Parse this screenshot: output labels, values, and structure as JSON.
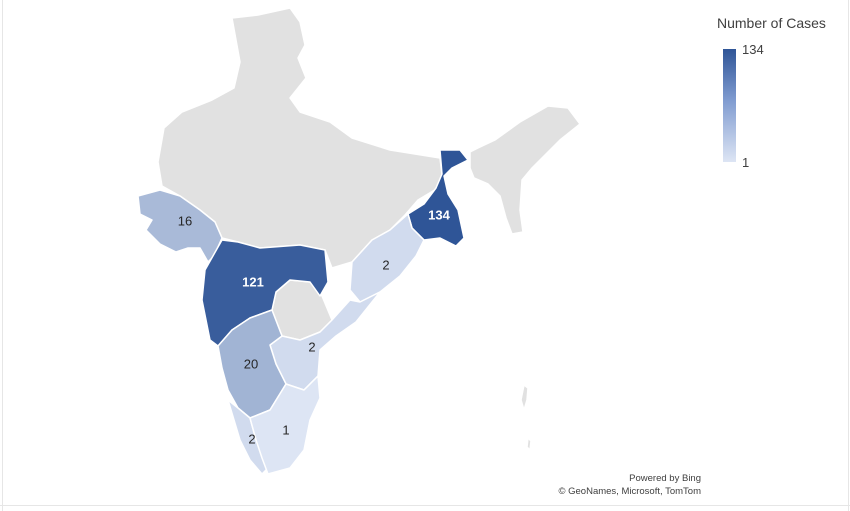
{
  "legend": {
    "title": "Number of Cases",
    "max_label": "134",
    "min_label": "1",
    "max_value": 134,
    "min_value": 1,
    "color_high": "#2f5597",
    "color_low": "#dde5f4"
  },
  "colors": {
    "no_data": "#e1e1e1",
    "border": "#ffffff"
  },
  "regions": [
    {
      "id": "west-bengal",
      "value": 134,
      "label": "134"
    },
    {
      "id": "maharashtra",
      "value": 121,
      "label": "121"
    },
    {
      "id": "karnataka",
      "value": 20,
      "label": "20"
    },
    {
      "id": "gujarat",
      "value": 16,
      "label": "16"
    },
    {
      "id": "odisha",
      "value": 2,
      "label": "2"
    },
    {
      "id": "andhra-pradesh",
      "value": 2,
      "label": "2"
    },
    {
      "id": "kerala",
      "value": 2,
      "label": "2"
    },
    {
      "id": "tamil-nadu",
      "value": 1,
      "label": "1"
    }
  ],
  "attribution": {
    "line1": "Powered by Bing",
    "line2": "© GeoNames, Microsoft, TomTom"
  }
}
